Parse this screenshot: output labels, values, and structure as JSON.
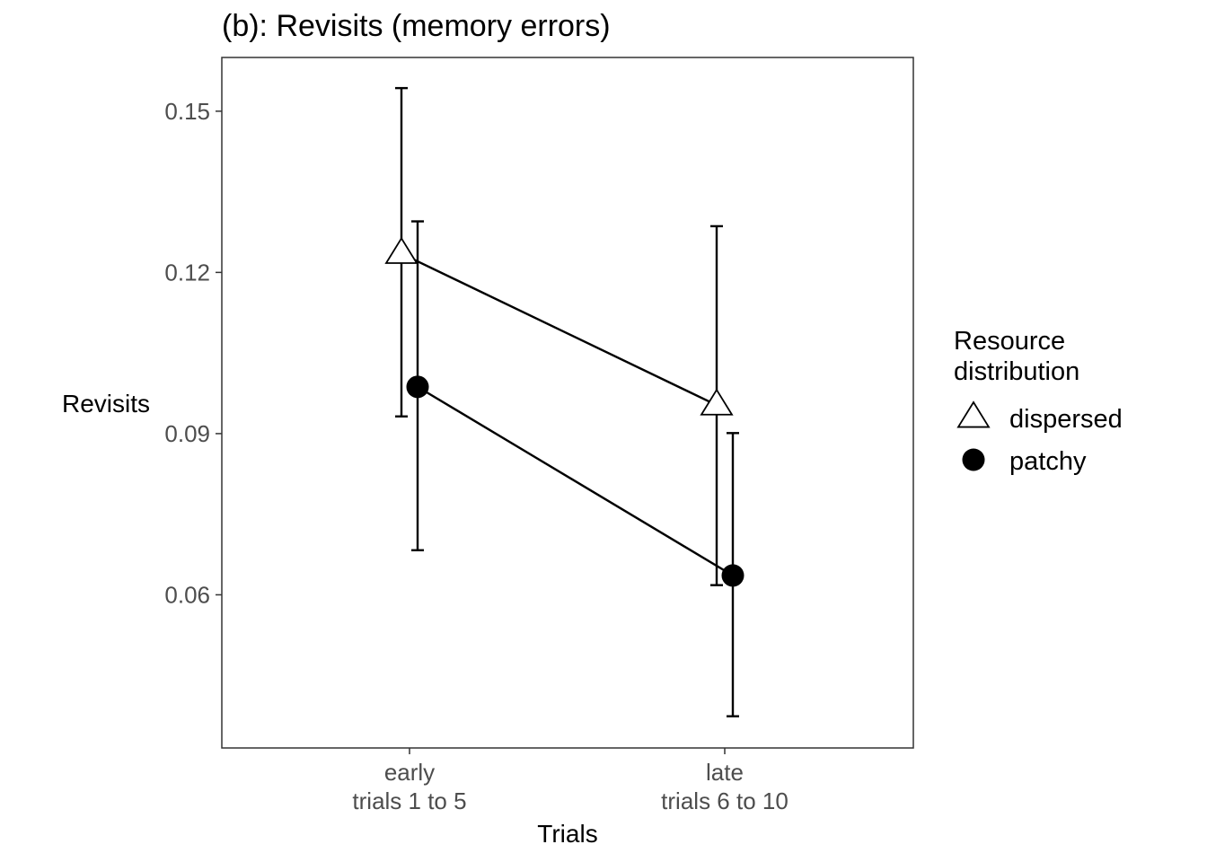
{
  "chart_data": {
    "type": "line",
    "title": "(b): Revisits (memory errors)",
    "xlabel": "Trials",
    "ylabel": "Revisits",
    "categories": [
      [
        "early",
        "trials 1 to 5"
      ],
      [
        "late",
        "trials 6 to 10"
      ]
    ],
    "y_ticks": [
      0.06,
      0.09,
      0.12,
      0.15
    ],
    "y_tick_labels": [
      "0.06",
      "0.09",
      "0.12",
      "0.15"
    ],
    "ylim": [
      0.0315,
      0.16
    ],
    "grid": false,
    "legend": {
      "title": [
        "Resource",
        "distribution"
      ],
      "placement": "right"
    },
    "series": [
      {
        "name": "dispersed",
        "marker": "open-triangle",
        "values": [
          0.1235,
          0.0953
        ],
        "error_low": [
          0.0932,
          0.0618
        ],
        "error_high": [
          0.1543,
          0.1286
        ]
      },
      {
        "name": "patchy",
        "marker": "filled-circle",
        "values": [
          0.0987,
          0.0636
        ],
        "error_low": [
          0.0683,
          0.0374
        ],
        "error_high": [
          0.1295,
          0.0901
        ]
      }
    ]
  }
}
